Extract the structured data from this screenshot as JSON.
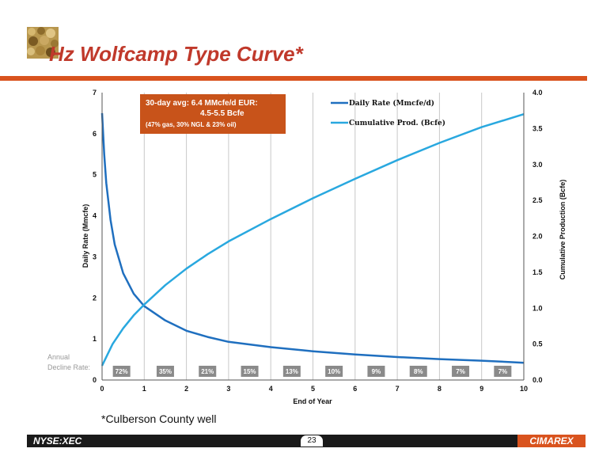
{
  "slide": {
    "title": "Hz Wolfcamp Type Curve*",
    "footnote": "*Culberson County well",
    "page_number": "23",
    "ticker": "NYSE:XEC",
    "brand": "CIMAREX"
  },
  "colors": {
    "accent": "#d9531e",
    "daily_rate": "#1f6fbf",
    "cumulative": "#29a8df",
    "decline_badge": "#8a8a8a"
  },
  "chart_data": {
    "type": "line",
    "xlabel": "End of Year",
    "ylabel_left": "Daily Rate (Mmcfe)",
    "ylabel_right": "Cumulative Production (Bcfe)",
    "xlim": [
      0,
      10
    ],
    "ylim_left": [
      0,
      7
    ],
    "ylim_right": [
      0,
      4
    ],
    "x_ticks": [
      "0",
      "1",
      "2",
      "3",
      "4",
      "5",
      "6",
      "7",
      "8",
      "9",
      "10"
    ],
    "y_left_ticks": [
      "0",
      "1",
      "2",
      "3",
      "4",
      "5",
      "6",
      "7"
    ],
    "y_right_ticks": [
      "0.0",
      "0.5",
      "1.0",
      "1.5",
      "2.0",
      "2.5",
      "3.0",
      "3.5",
      "4.0"
    ],
    "grid": true,
    "legend_position": "top-right",
    "series": [
      {
        "name": "Daily Rate (Mmcfe/d)",
        "axis": "left",
        "x": [
          0,
          0.05,
          0.1,
          0.2,
          0.3,
          0.5,
          0.75,
          1,
          1.5,
          2,
          2.5,
          3,
          4,
          5,
          6,
          7,
          8,
          9,
          10
        ],
        "y": [
          6.5,
          5.5,
          4.8,
          3.9,
          3.3,
          2.6,
          2.1,
          1.8,
          1.45,
          1.2,
          1.05,
          0.93,
          0.8,
          0.7,
          0.62,
          0.56,
          0.51,
          0.47,
          0.42
        ]
      },
      {
        "name": "Cumulative Prod. (Bcfe)",
        "axis": "right",
        "x": [
          0,
          0.25,
          0.5,
          0.75,
          1,
          1.5,
          2,
          2.5,
          3,
          4,
          5,
          6,
          7,
          8,
          9,
          10
        ],
        "y": [
          0.2,
          0.5,
          0.72,
          0.9,
          1.05,
          1.32,
          1.55,
          1.75,
          1.93,
          2.24,
          2.53,
          2.8,
          3.06,
          3.3,
          3.52,
          3.7
        ]
      }
    ],
    "annotation_box": {
      "line1": "30-day avg:  6.4 MMcfe/d EUR:",
      "line2": "4.5-5.5 Bcfe",
      "line3": "(47% gas, 30% NGL & 23% oil)"
    },
    "decline_label_line1": "Annual",
    "decline_label_line2": "Decline Rate:",
    "decline_rates": [
      "72%",
      "35%",
      "21%",
      "15%",
      "13%",
      "10%",
      "9%",
      "8%",
      "7%",
      "7%"
    ]
  }
}
